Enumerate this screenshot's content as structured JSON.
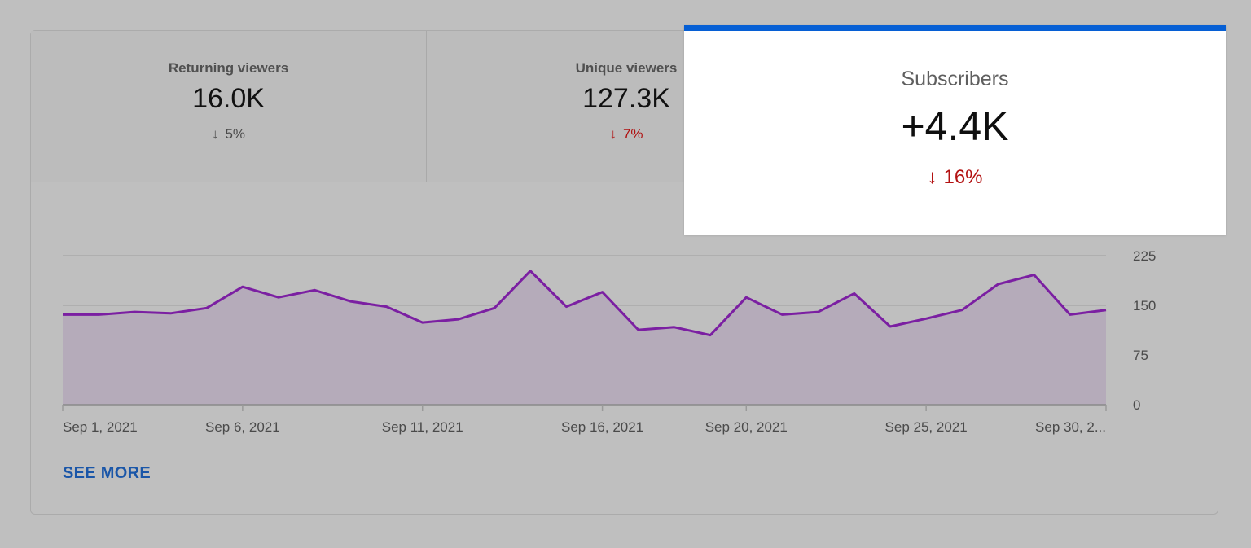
{
  "metrics": [
    {
      "label": "Returning viewers",
      "value": "16.0K",
      "delta": "5%",
      "direction": "down",
      "tone": "neutral"
    },
    {
      "label": "Unique viewers",
      "value": "127.3K",
      "delta": "7%",
      "direction": "down",
      "tone": "negative"
    },
    {
      "label": "Subscribers",
      "value": "+4.4K",
      "delta": "16%",
      "direction": "down",
      "tone": "negative",
      "selected": true
    }
  ],
  "icons": {
    "down_arrow": "arrow-down-icon"
  },
  "colors": {
    "accent": "#065fd4",
    "negative": "#b31212",
    "line": "#7b1fa2",
    "area": "#b5abba",
    "link": "#1a56a8"
  },
  "see_more_label": "SEE MORE",
  "chart_data": {
    "type": "area",
    "title": "Subscribers",
    "xlabel": "",
    "ylabel": "",
    "ylim": [
      0,
      225
    ],
    "y_ticks": [
      0,
      75,
      150,
      225
    ],
    "y_axis_position": "right",
    "grid": true,
    "x_tick_labels": [
      "Sep 1, 2021",
      "Sep 6, 2021",
      "Sep 11, 2021",
      "Sep 16, 2021",
      "Sep 20, 2021",
      "Sep 25, 2021",
      "Sep 30, 2..."
    ],
    "x_tick_days": [
      1,
      6,
      11,
      16,
      20,
      25,
      30
    ],
    "x": [
      "Sep 1",
      "Sep 2",
      "Sep 3",
      "Sep 4",
      "Sep 5",
      "Sep 6",
      "Sep 7",
      "Sep 8",
      "Sep 9",
      "Sep 10",
      "Sep 11",
      "Sep 12",
      "Sep 13",
      "Sep 14",
      "Sep 15",
      "Sep 16",
      "Sep 17",
      "Sep 18",
      "Sep 19",
      "Sep 20",
      "Sep 21",
      "Sep 22",
      "Sep 23",
      "Sep 24",
      "Sep 25",
      "Sep 26",
      "Sep 27",
      "Sep 28",
      "Sep 29",
      "Sep 30"
    ],
    "series": [
      {
        "name": "Subscribers",
        "values": [
          136,
          136,
          140,
          138,
          146,
          178,
          162,
          173,
          156,
          148,
          124,
          129,
          146,
          202,
          148,
          170,
          113,
          117,
          105,
          162,
          136,
          140,
          168,
          118,
          130,
          143,
          182,
          196,
          136,
          143
        ]
      }
    ]
  }
}
